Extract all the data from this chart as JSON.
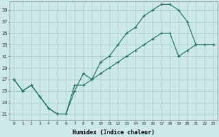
{
  "xlabel": "Humidex (Indice chaleur)",
  "ylabel": "",
  "bg_color": "#cce8e8",
  "grid_color": "#a8cccc",
  "line_color": "#1a6b5a",
  "xlim": [
    -0.5,
    23.5
  ],
  "ylim": [
    20.0,
    40.5
  ],
  "xticks": [
    0,
    1,
    2,
    3,
    4,
    5,
    6,
    7,
    8,
    9,
    10,
    11,
    12,
    13,
    14,
    15,
    16,
    17,
    18,
    19,
    20,
    21,
    22,
    23
  ],
  "yticks": [
    21,
    23,
    25,
    27,
    29,
    31,
    33,
    35,
    37,
    39
  ],
  "series1_x": [
    0,
    1,
    2,
    3,
    4,
    5,
    6,
    7,
    8,
    9,
    10,
    11,
    12,
    13,
    14,
    15,
    16,
    17,
    18,
    19,
    20,
    21,
    22,
    23
  ],
  "series1_y": [
    27,
    25,
    26,
    24,
    22,
    21,
    21,
    25,
    28,
    27,
    30,
    31,
    33,
    35,
    36,
    38,
    39,
    40,
    40,
    39,
    37,
    33,
    33,
    33
  ],
  "series2_x": [
    0,
    1,
    2,
    3,
    4,
    5,
    6,
    7,
    8,
    9,
    10,
    11,
    12,
    13,
    14,
    15,
    16,
    17,
    18,
    19,
    20,
    21,
    22,
    23
  ],
  "series2_y": [
    27,
    25,
    26,
    24,
    22,
    21,
    21,
    26,
    26,
    27,
    28,
    29,
    30,
    31,
    32,
    33,
    34,
    35,
    35,
    31,
    32,
    33,
    33,
    33
  ]
}
